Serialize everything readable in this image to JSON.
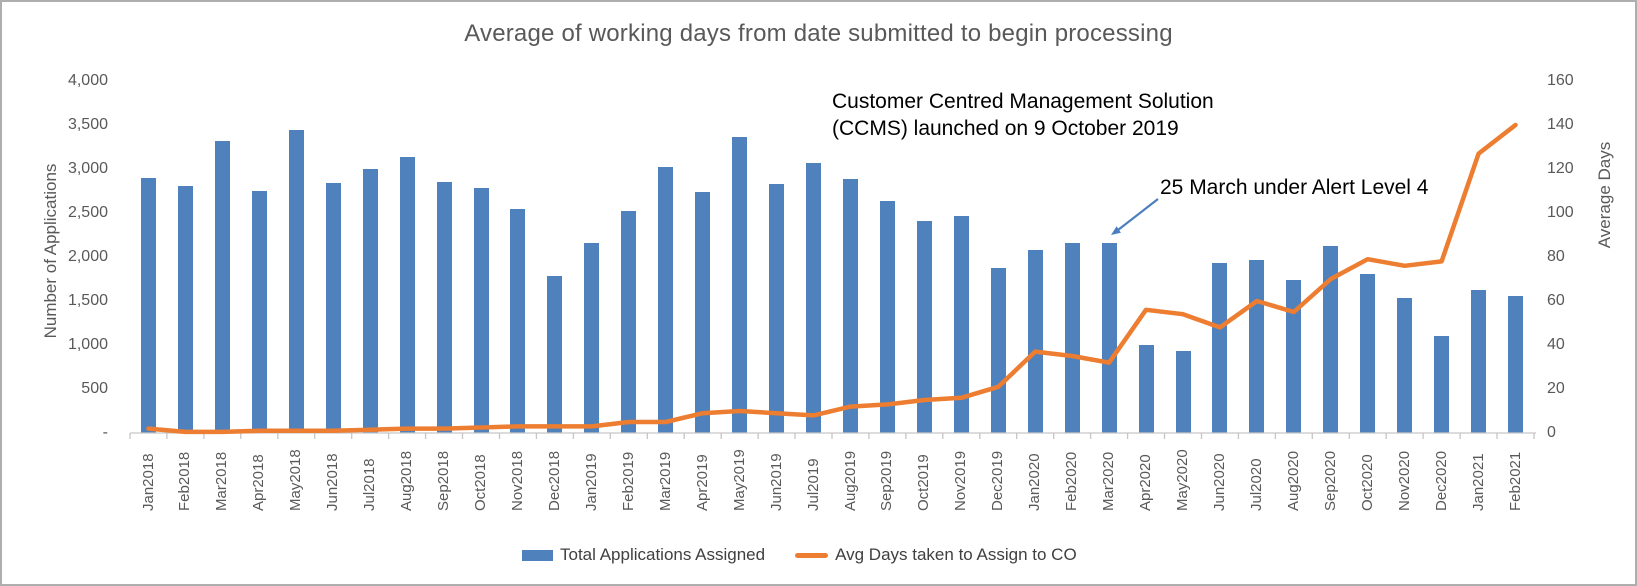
{
  "title": "Average of working days from date submitted to begin processing",
  "left_axis": {
    "title": "Number of Applications",
    "labels": [
      "4,000",
      "3,500",
      "3,000",
      "2,500",
      "2,000",
      "1,500",
      "1,000",
      "500",
      "-"
    ]
  },
  "right_axis": {
    "title": "Average Days",
    "labels": [
      "160",
      "140",
      "120",
      "100",
      "80",
      "60",
      "40",
      "20",
      "0"
    ]
  },
  "annotations": {
    "ccms_line1": "Customer Centred Management Solution",
    "ccms_line2": "(CCMS) launched on 9 October 2019",
    "alert_level": "25 March under Alert Level 4"
  },
  "legend": [
    {
      "label": "Total Applications Assigned",
      "color": "#4F81BD",
      "type": "bar"
    },
    {
      "label": "Avg Days taken to Assign to CO",
      "color": "#ED7D31",
      "type": "line"
    }
  ],
  "colors": {
    "bar": "#4F81BD",
    "line": "#ED7D31",
    "title_text": "#595959",
    "axis_text": "#595959",
    "axis_line": "#C6C6C6",
    "annotation_text": "#000000",
    "arrow": "#4A7EBE"
  },
  "chart_data": {
    "type": "bar",
    "subtype": "combo bar+line, dual axis",
    "title": "Average of working days from date submitted to begin processing",
    "categories": [
      "Jan2018",
      "Feb2018",
      "Mar2018",
      "Apr2018",
      "May2018",
      "Jun2018",
      "Jul2018",
      "Aug2018",
      "Sep2018",
      "Oct2018",
      "Nov2018",
      "Dec2018",
      "Jan2019",
      "Feb2019",
      "Mar2019",
      "Apr2019",
      "May2019",
      "Jun2019",
      "Jul2019",
      "Aug2019",
      "Sep2019",
      "Oct2019",
      "Nov2019",
      "Dec2019",
      "Jan2020",
      "Feb2020",
      "Mar2020",
      "Apr2020",
      "May2020",
      "Jun2020",
      "Jul2020",
      "Aug2020",
      "Sep2020",
      "Oct2020",
      "Nov2020",
      "Dec2020",
      "Jan2021",
      "Feb2021"
    ],
    "series": [
      {
        "name": "Total Applications Assigned",
        "type": "bar",
        "axis": "left",
        "values": [
          2900,
          2810,
          3320,
          2750,
          3440,
          2840,
          3000,
          3140,
          2850,
          2790,
          2550,
          1790,
          2160,
          2520,
          3020,
          2740,
          3360,
          2830,
          3070,
          2890,
          2640,
          2410,
          2470,
          1880,
          2080,
          2160,
          2160,
          1000,
          930,
          1930,
          1970,
          1740,
          2130,
          1810,
          1530,
          1100,
          1630,
          1560
        ]
      },
      {
        "name": "Avg Days taken to Assign to CO",
        "type": "line",
        "axis": "right",
        "values": [
          2,
          0.5,
          0.5,
          1,
          1,
          1,
          1.5,
          2,
          2,
          2.5,
          3,
          3,
          3,
          5,
          5,
          9,
          10,
          9,
          8,
          12,
          13,
          15,
          16,
          21,
          37,
          35,
          32,
          56,
          54,
          48,
          60,
          55,
          70,
          79,
          76,
          78,
          127,
          140
        ]
      }
    ],
    "left_ylabel": "Number of Applications",
    "right_ylabel": "Average Days",
    "left_ylim": [
      0,
      4000
    ],
    "right_ylim": [
      0,
      160
    ],
    "left_tick_step": 500,
    "right_tick_step": 20,
    "grid": false,
    "legend_position": "bottom"
  }
}
